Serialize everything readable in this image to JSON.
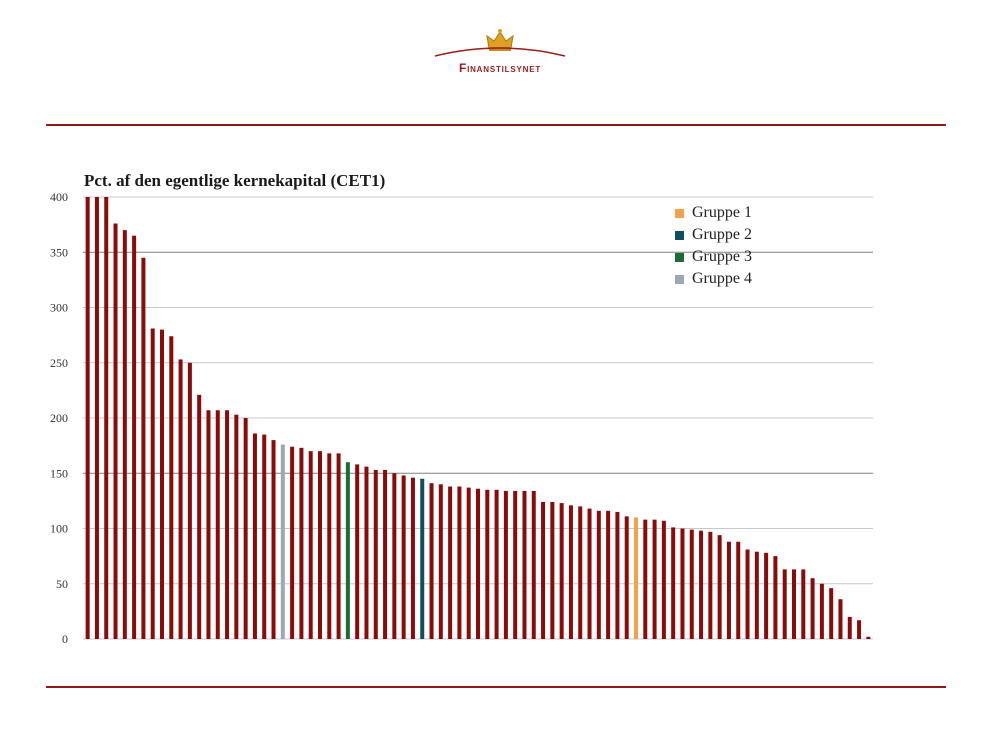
{
  "header": {
    "logo_text": "Finanstilsynet",
    "colors": {
      "rule": "#8b1a1a",
      "logo": "#9b1c1c",
      "crown": "#e0a020"
    }
  },
  "chart_data": {
    "type": "bar",
    "title": "Pct. af den egentlige kernekapital (CET1)",
    "ylim": [
      0,
      400
    ],
    "yticks": [
      0,
      50,
      100,
      150,
      200,
      250,
      300,
      350,
      400
    ],
    "grid": true,
    "legend_position": "top-right",
    "values": [
      400,
      400,
      400,
      376,
      370,
      365,
      345,
      281,
      280,
      274,
      253,
      250,
      221,
      207,
      207,
      207,
      203,
      200,
      186,
      185,
      180,
      176,
      174,
      173,
      170,
      170,
      168,
      168,
      160,
      158,
      156,
      153,
      153,
      150,
      148,
      146,
      145,
      141,
      140,
      138,
      138,
      137,
      136,
      135,
      135,
      134,
      134,
      134,
      134,
      124,
      124,
      123,
      121,
      120,
      118,
      116,
      116,
      115,
      111,
      110,
      108,
      108,
      107,
      101,
      100,
      99,
      98,
      97,
      94,
      88,
      88,
      81,
      79,
      78,
      75,
      63,
      63,
      63,
      55,
      50,
      46,
      36,
      20,
      17,
      2
    ],
    "groups": [
      0,
      0,
      0,
      0,
      0,
      0,
      0,
      0,
      0,
      0,
      0,
      0,
      0,
      0,
      0,
      0,
      0,
      0,
      0,
      0,
      0,
      4,
      0,
      0,
      0,
      0,
      0,
      0,
      3,
      0,
      0,
      0,
      0,
      0,
      0,
      0,
      2,
      0,
      0,
      0,
      0,
      0,
      0,
      0,
      0,
      0,
      0,
      0,
      0,
      0,
      0,
      0,
      0,
      0,
      0,
      0,
      0,
      0,
      0,
      1,
      0,
      0,
      0,
      0,
      0,
      0,
      0,
      0,
      0,
      0,
      0,
      0,
      0,
      0,
      0,
      0,
      0,
      0,
      0,
      0,
      0,
      0,
      0,
      0,
      0
    ],
    "group_colors": {
      "0": "#8b0a0a",
      "1": "#f4a24a",
      "2": "#0f4f5f",
      "3": "#1d6b35",
      "4": "#9aa9b2"
    },
    "legend": [
      {
        "label": "Gruppe 1",
        "color": "#f4a24a"
      },
      {
        "label": "Gruppe 2",
        "color": "#0f4f5f"
      },
      {
        "label": "Gruppe 3",
        "color": "#1d6b35"
      },
      {
        "label": "Gruppe 4",
        "color": "#9aa9b2"
      }
    ]
  }
}
